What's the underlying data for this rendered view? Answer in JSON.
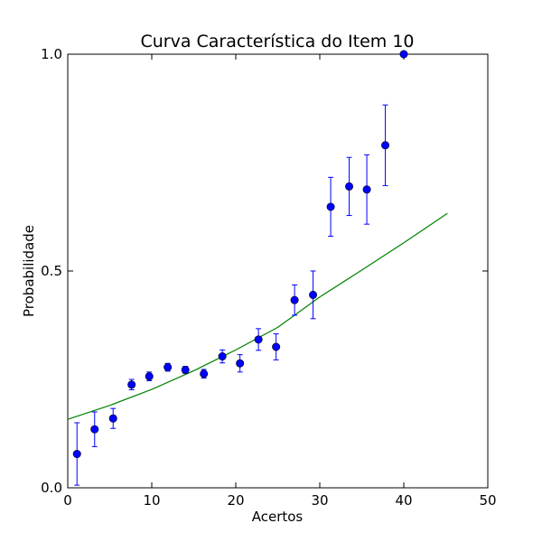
{
  "chart_data": {
    "type": "scatter",
    "title": "Curva Característica do Item 10",
    "xlabel": "Acertos",
    "ylabel": "Probabilidade",
    "xlim": [
      0,
      50
    ],
    "ylim": [
      0.0,
      1.0
    ],
    "x_ticks": [
      0,
      10,
      20,
      30,
      40,
      50
    ],
    "x_tick_labels": [
      "0",
      "10",
      "20",
      "30",
      "40",
      "50"
    ],
    "y_ticks": [
      0.0,
      0.5,
      1.0
    ],
    "y_tick_labels": [
      "0.0",
      "0.5",
      "1.0"
    ],
    "grid": false,
    "series": [
      {
        "kind": "points-with-errorbars",
        "color": "#0000ff",
        "points": [
          {
            "x": 1.1,
            "y": 0.078,
            "err": 0.072
          },
          {
            "x": 3.2,
            "y": 0.135,
            "err": 0.04
          },
          {
            "x": 5.4,
            "y": 0.16,
            "err": 0.023
          },
          {
            "x": 7.6,
            "y": 0.238,
            "err": 0.012
          },
          {
            "x": 9.7,
            "y": 0.257,
            "err": 0.01
          },
          {
            "x": 11.9,
            "y": 0.278,
            "err": 0.009
          },
          {
            "x": 14.0,
            "y": 0.272,
            "err": 0.008
          },
          {
            "x": 16.2,
            "y": 0.263,
            "err": 0.01
          },
          {
            "x": 18.4,
            "y": 0.303,
            "err": 0.015
          },
          {
            "x": 20.5,
            "y": 0.287,
            "err": 0.02
          },
          {
            "x": 22.7,
            "y": 0.342,
            "err": 0.025
          },
          {
            "x": 24.8,
            "y": 0.325,
            "err": 0.03
          },
          {
            "x": 27.0,
            "y": 0.433,
            "err": 0.035
          },
          {
            "x": 29.2,
            "y": 0.445,
            "err": 0.055
          },
          {
            "x": 31.3,
            "y": 0.648,
            "err": 0.068
          },
          {
            "x": 33.5,
            "y": 0.695,
            "err": 0.067
          },
          {
            "x": 35.6,
            "y": 0.688,
            "err": 0.08
          },
          {
            "x": 37.8,
            "y": 0.79,
            "err": 0.093
          },
          {
            "x": 40.0,
            "y": 1.0,
            "err": 0.0
          }
        ]
      },
      {
        "kind": "line",
        "color": "#008000",
        "points": [
          {
            "x": 0,
            "y": 0.158
          },
          {
            "x": 5,
            "y": 0.19
          },
          {
            "x": 10,
            "y": 0.227
          },
          {
            "x": 15,
            "y": 0.27
          },
          {
            "x": 20,
            "y": 0.318
          },
          {
            "x": 25,
            "y": 0.37
          },
          {
            "x": 30,
            "y": 0.44
          },
          {
            "x": 35,
            "y": 0.502
          },
          {
            "x": 40,
            "y": 0.565
          },
          {
            "x": 45.2,
            "y": 0.633
          }
        ]
      }
    ]
  }
}
